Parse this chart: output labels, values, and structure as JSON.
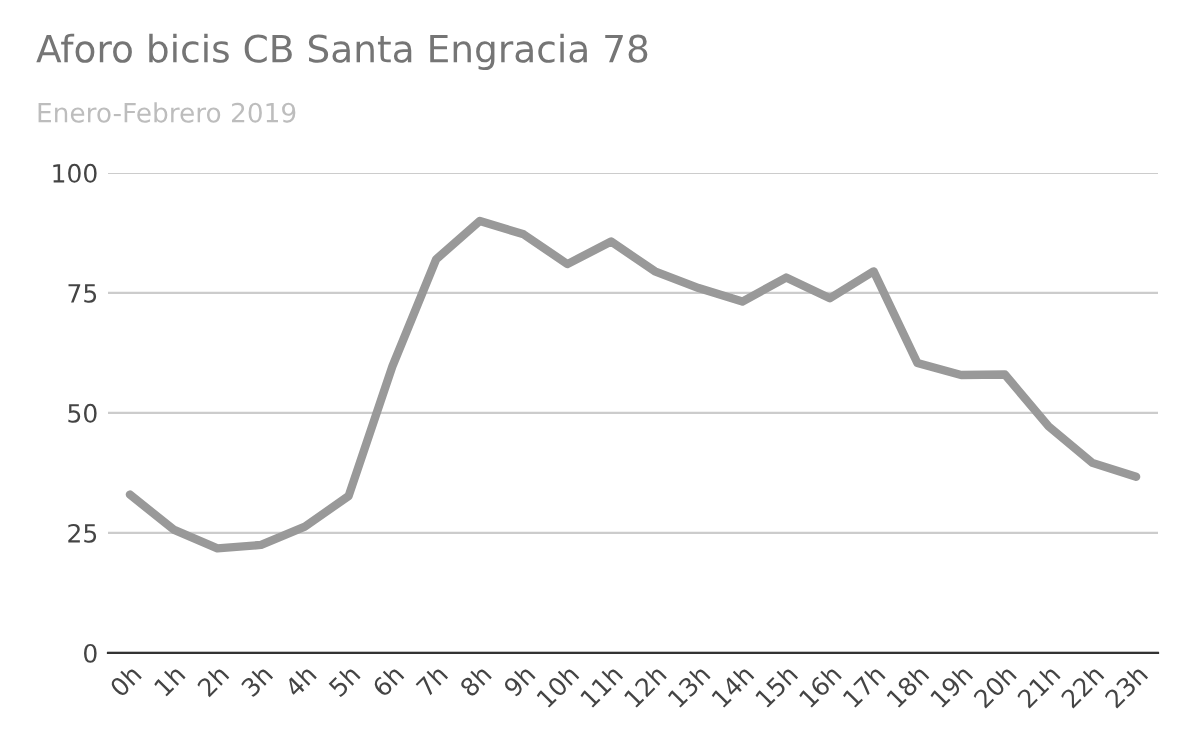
{
  "chart_data": {
    "type": "line",
    "title": "Aforo bicis CB Santa Engracia 78",
    "subtitle": "Enero-Febrero 2019",
    "categories": [
      "0h",
      "1h",
      "2h",
      "3h",
      "4h",
      "5h",
      "6h",
      "7h",
      "8h",
      "9h",
      "10h",
      "11h",
      "12h",
      "13h",
      "14h",
      "15h",
      "16h",
      "17h",
      "18h",
      "19h",
      "20h",
      "21h",
      "22h",
      "23h"
    ],
    "series": [
      {
        "color": "#999999",
        "values": [
          33,
          25.7,
          21.8,
          22.5,
          26.3,
          32.7,
          59.7,
          82,
          90,
          87.2,
          81,
          85.7,
          79.5,
          76,
          73.2,
          78.2,
          73.9,
          79.5,
          60.4,
          57.9,
          58,
          47.2,
          39.6,
          36.7
        ]
      }
    ],
    "ylim": [
      0,
      100
    ],
    "yticks": [
      0,
      25,
      50,
      75,
      100
    ],
    "grid": "y",
    "legend": false,
    "marker": "none",
    "line_style": "solid"
  }
}
